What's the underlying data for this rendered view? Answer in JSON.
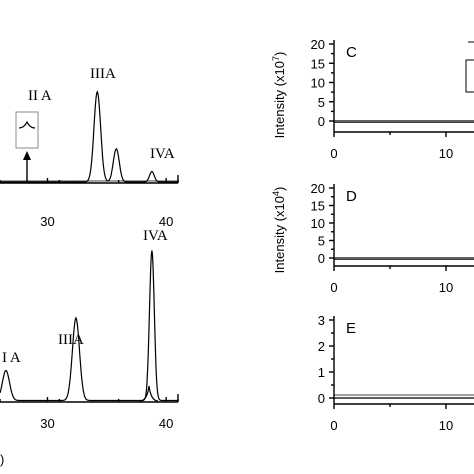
{
  "chart_data": [
    {
      "panel": "top-left",
      "type": "line",
      "x_ticks": [
        "30",
        "40"
      ],
      "xlim": [
        26,
        41
      ],
      "peaks": [
        {
          "label": "II A",
          "x": 28.5,
          "height": 0.0
        },
        {
          "label": "IIIA",
          "x": 34.2,
          "height": 0.95
        },
        {
          "label": "",
          "x": 35.8,
          "height": 0.35
        },
        {
          "label": "IVA",
          "x": 38.8,
          "height": 0.11
        }
      ],
      "annotations": [
        "II A",
        "IIIA",
        "IVA"
      ]
    },
    {
      "panel": "bottom-left",
      "type": "line",
      "x_ticks": [
        "30",
        "40"
      ],
      "xlim": [
        26,
        41
      ],
      "peaks": [
        {
          "label": "I A",
          "x": 26.5,
          "height": 0.2
        },
        {
          "label": "IIIA",
          "x": 32.4,
          "height": 0.55
        },
        {
          "label": "IVA",
          "x": 38.8,
          "height": 1.0
        }
      ],
      "annotations": [
        "I A",
        "IIIA",
        "IVA"
      ],
      "panel_label_fragment": ")"
    },
    {
      "panel": "C",
      "type": "line",
      "panel_label": "C",
      "ylabel": "Intensity (x10",
      "ylabel_exp": "7",
      "ylabel_close": ")",
      "y_ticks": [
        "0",
        "5",
        "10",
        "15",
        "20"
      ],
      "ylim": [
        -2,
        20
      ],
      "x_ticks": [
        "0",
        "10"
      ],
      "xlim": [
        0,
        14
      ],
      "values": [
        0,
        0
      ]
    },
    {
      "panel": "D",
      "type": "line",
      "panel_label": "D",
      "ylabel": "Intensity (x10",
      "ylabel_exp": "4",
      "ylabel_close": ")",
      "y_ticks": [
        "0",
        "5",
        "10",
        "15",
        "20"
      ],
      "ylim": [
        -2,
        20
      ],
      "x_ticks": [
        "0",
        "10"
      ],
      "xlim": [
        0,
        14
      ],
      "values": [
        0,
        0
      ]
    },
    {
      "panel": "E",
      "type": "line",
      "panel_label": "E",
      "y_ticks": [
        "0",
        "1",
        "2",
        "3"
      ],
      "ylim": [
        -0.3,
        3.3
      ],
      "x_ticks": [
        "0",
        "10"
      ],
      "xlim": [
        0,
        14
      ],
      "values": [
        0,
        0
      ]
    }
  ]
}
